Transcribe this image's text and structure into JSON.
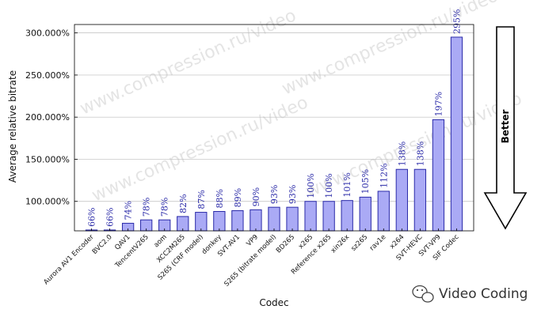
{
  "chart_data": {
    "type": "bar",
    "xlabel": "Codec",
    "ylabel": "Average relative bitrate",
    "ylim": [
      65,
      310
    ],
    "yticks": [
      100,
      150,
      200,
      250,
      300
    ],
    "ytick_labels": [
      "100.000%",
      "150.000%",
      "200.000%",
      "250.000%",
      "300.000%"
    ],
    "categories": [
      "Aurora AV1 Encoder",
      "BVC2.0",
      "QAV1",
      "TencentV265",
      "aom",
      "XCC2M265",
      "S265 (CRF model)",
      "donkey",
      "SVT-AV1",
      "VP9",
      "S265 (bitrate model)",
      "BD265",
      "x265",
      "Reference x265",
      "xin26x",
      "sz265",
      "rav1e",
      "x264",
      "SVT-HEVC",
      "SVT-VP9",
      "SIF Codec"
    ],
    "values": [
      66,
      66,
      74,
      78,
      78,
      82,
      87,
      88,
      89,
      90,
      93,
      93,
      100,
      100,
      101,
      105,
      112,
      138,
      138,
      197,
      295
    ],
    "data_labels": [
      "66%",
      "66%",
      "74%",
      "78%",
      "78%",
      "82%",
      "87%",
      "88%",
      "89%",
      "90%",
      "93%",
      "93%",
      "100%",
      "100%",
      "101%",
      "105%",
      "112%",
      "138%",
      "138%",
      "197%",
      "295%"
    ],
    "bar_color": "#aaaaf5",
    "bar_edge_color": "#2a2aa8",
    "label_color": "#2a2aa8",
    "grid": "horizontal"
  },
  "better_indicator": {
    "label": "Better",
    "direction": "down"
  },
  "watermarks": [
    "www.compression.ru/video",
    "www.compression.ru/video",
    "www.compression.ru/video",
    "www.compression.ru/video"
  ],
  "branding": {
    "label": "Video Coding",
    "icon": "wechat-icon"
  }
}
